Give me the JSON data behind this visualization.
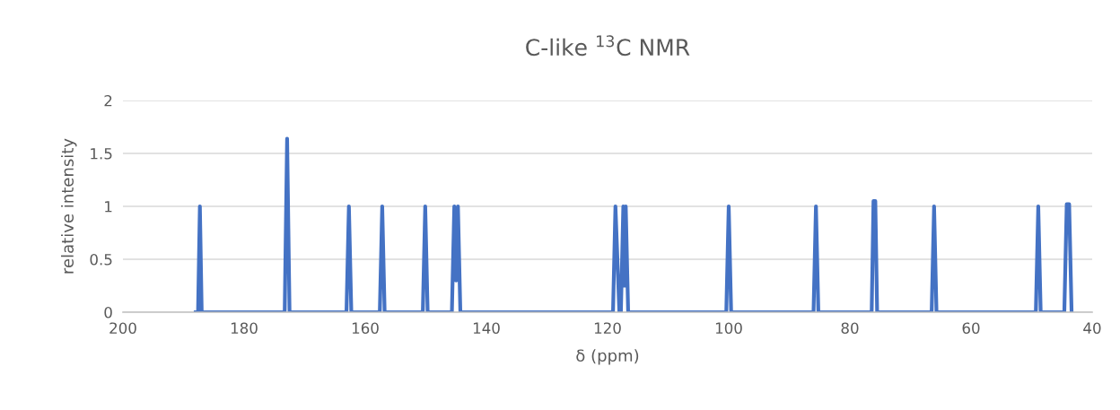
{
  "chart_data": {
    "type": "line",
    "title": "C-like $^{13}$C NMR",
    "xlabel": "δ (ppm)",
    "ylabel": "relative intensity",
    "xlim": [
      200,
      40
    ],
    "xticks": [
      200,
      180,
      160,
      140,
      120,
      100,
      80,
      60,
      40
    ],
    "ylim": [
      0,
      2
    ],
    "yticks": [
      0,
      0.5,
      1,
      1.5,
      2
    ],
    "grid": "y",
    "marker": "none",
    "line_style": "solid",
    "series": [
      {
        "color": "#4472c4",
        "x": [
          188.0,
          187.6,
          187.3,
          187.0,
          173.3,
          172.9,
          172.5,
          163.1,
          162.7,
          162.3,
          157.6,
          157.2,
          156.8,
          150.5,
          150.1,
          149.7,
          145.7,
          145.3,
          145.0,
          144.7,
          144.3,
          119.1,
          118.7,
          118.05,
          117.8,
          117.4,
          117.2,
          117.0,
          116.6,
          100.4,
          100.0,
          99.6,
          86.0,
          85.6,
          85.2,
          76.4,
          76.1,
          75.8,
          75.5,
          66.5,
          66.1,
          65.7,
          49.3,
          48.9,
          48.5,
          44.6,
          44.2,
          43.8,
          43.4
        ],
        "values": [
          0,
          0,
          1,
          0,
          0,
          1.64,
          0,
          0,
          1,
          0,
          0,
          1,
          0,
          0,
          1,
          0,
          0,
          1,
          0.3,
          1,
          0,
          0,
          1,
          0,
          0,
          1,
          0.25,
          1,
          0,
          0,
          1,
          0,
          0,
          1,
          0,
          0,
          1.05,
          1.05,
          0,
          0,
          1,
          0,
          0,
          1,
          0,
          0,
          1.02,
          1.02,
          0
        ]
      }
    ]
  }
}
